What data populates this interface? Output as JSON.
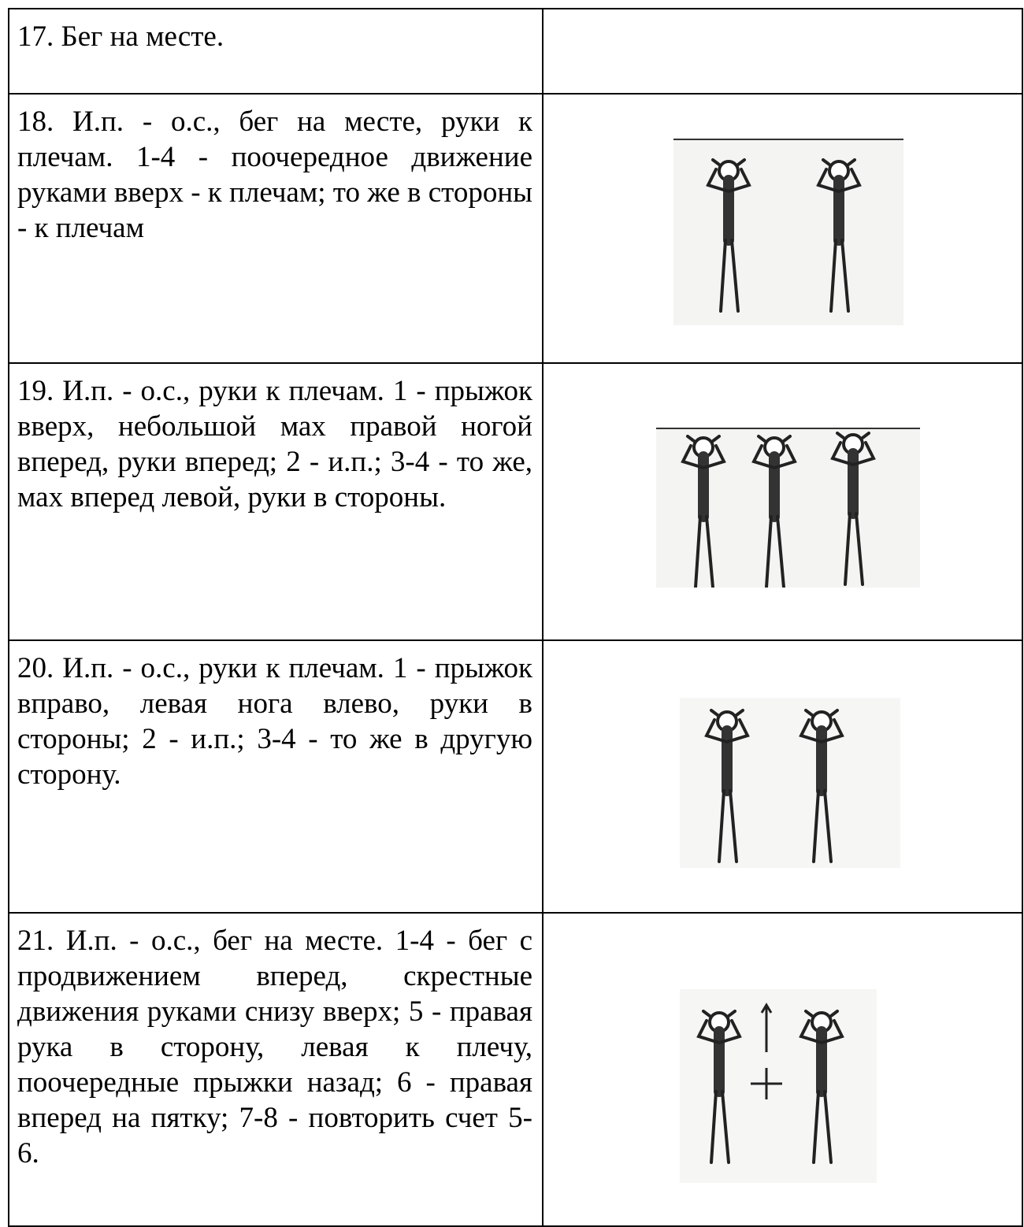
{
  "table": {
    "rows": [
      [
        "17. Бег на месте."
      ],
      [
        "18. И.п. - о.с., бег на месте, руки к плечам. 1-4 - поочередное движение руками вверх - к плечам; то же в стороны - к плечам"
      ],
      [
        "19. И.п. - о.с., руки к плечам. 1 - прыжок вверх, небольшой мах правой ногой вперед, руки вперед; 2 - и.п.; 3-4 - то же, мах вперед левой, руки в стороны."
      ],
      [
        "20. И.п. - о.с., руки к плечам. 1 - прыжок вправо, левая нога влево, руки в стороны; 2 - и.п.; 3-4 - то же в другую сторону."
      ],
      [
        "21. И.п. - о.с., бег на месте. 1-4 - бег с продвижением вперед, скрестные движения руками снизу вверх; 5 - правая рука в сторону, левая к плечу, поочередные прыжки назад; 6 - правая вперед на пятку; 7-8 - повторить счет 5-6."
      ]
    ]
  }
}
